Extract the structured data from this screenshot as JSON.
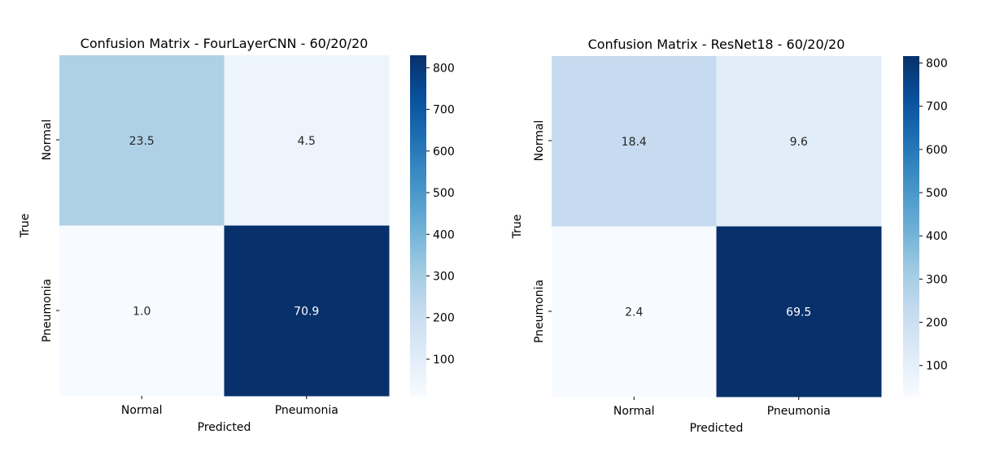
{
  "chart_data": [
    {
      "type": "heatmap",
      "title": "Confusion Matrix - FourLayerCNN - 60/20/20",
      "xlabel": "Predicted",
      "ylabel": "True",
      "x_categories": [
        "Normal",
        "Pneumonia"
      ],
      "y_categories": [
        "Normal",
        "Pneumonia"
      ],
      "annotations": [
        [
          "23.5",
          "4.5"
        ],
        [
          "1.0",
          "70.9"
        ]
      ],
      "cell_colors": [
        [
          "#afd1e7",
          "#edf4fc"
        ],
        [
          "#f7fbff",
          "#08306b"
        ]
      ],
      "colorbar": {
        "range": [
          12,
          830
        ],
        "ticks": [
          100,
          200,
          300,
          400,
          500,
          600,
          700,
          800
        ],
        "colormap": "Blues"
      }
    },
    {
      "type": "heatmap",
      "title": "Confusion Matrix - ResNet18 - 60/20/20",
      "xlabel": "Predicted",
      "ylabel": "True",
      "x_categories": [
        "Normal",
        "Pneumonia"
      ],
      "y_categories": [
        "Normal",
        "Pneumonia"
      ],
      "annotations": [
        [
          "18.4",
          "9.6"
        ],
        [
          "2.4",
          "69.5"
        ]
      ],
      "cell_colors": [
        [
          "#c6dbef",
          "#e1edf8"
        ],
        [
          "#f7fbff",
          "#08306b"
        ]
      ],
      "colorbar": {
        "range": [
          28,
          816
        ],
        "ticks": [
          100,
          200,
          300,
          400,
          500,
          600,
          700,
          800
        ],
        "colormap": "Blues"
      }
    }
  ]
}
